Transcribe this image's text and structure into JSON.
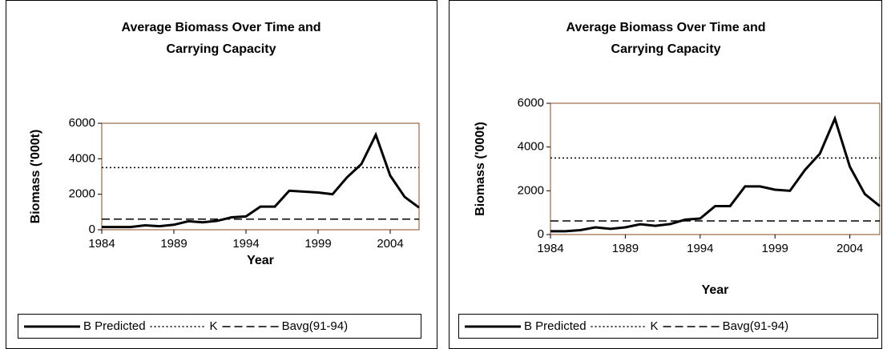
{
  "chart_data": [
    {
      "type": "line",
      "title": "Average Biomass Over Time and",
      "subtitle": "Carrying Capacity",
      "x_label": "Year",
      "y_label": "Biomass ('000t)",
      "x": [
        1984,
        1985,
        1986,
        1987,
        1988,
        1989,
        1990,
        1991,
        1992,
        1993,
        1994,
        1995,
        1996,
        1997,
        1998,
        1999,
        2000,
        2001,
        2002,
        2003,
        2004,
        2005,
        2006
      ],
      "xlim": [
        1984,
        2006
      ],
      "xticks": [
        1984,
        1989,
        1994,
        1999,
        2004
      ],
      "ylim": [
        0,
        6000
      ],
      "yticks": [
        0,
        2000,
        4000,
        6000
      ],
      "legend": "bottom",
      "series": [
        {
          "name": "B Predicted",
          "color": "#000000",
          "dash": "solid",
          "values": [
            150,
            150,
            150,
            250,
            200,
            280,
            480,
            420,
            500,
            700,
            750,
            1300,
            1300,
            2200,
            2150,
            2100,
            2000,
            2950,
            3700,
            5350,
            3050,
            1850,
            1250
          ]
        },
        {
          "name": "K",
          "color": "#000000",
          "dash": "dotted",
          "values": [
            3500,
            3500,
            3500,
            3500,
            3500,
            3500,
            3500,
            3500,
            3500,
            3500,
            3500,
            3500,
            3500,
            3500,
            3500,
            3500,
            3500,
            3500,
            3500,
            3500,
            3500,
            3500,
            3500
          ]
        },
        {
          "name": "Bavg(91-94)",
          "color": "#000000",
          "dash": "dashed",
          "values": [
            600,
            600,
            600,
            600,
            600,
            600,
            600,
            600,
            600,
            600,
            600,
            600,
            600,
            600,
            600,
            600,
            600,
            600,
            600,
            600,
            600,
            600,
            600
          ]
        }
      ]
    },
    {
      "type": "line",
      "title": "Average Biomass Over Time and",
      "subtitle": "Carrying Capacity",
      "x_label": "Year",
      "y_label": "Biomass ('000t)",
      "x": [
        1984,
        1985,
        1986,
        1987,
        1988,
        1989,
        1990,
        1991,
        1992,
        1993,
        1994,
        1995,
        1996,
        1997,
        1998,
        1999,
        2000,
        2001,
        2002,
        2003,
        2004,
        2005,
        2006
      ],
      "xlim": [
        1984,
        2006
      ],
      "xticks": [
        1984,
        1989,
        1994,
        1999,
        2004
      ],
      "ylim": [
        0,
        6000
      ],
      "yticks": [
        0,
        2000,
        4000,
        6000
      ],
      "legend": "bottom",
      "series": [
        {
          "name": "B Predicted",
          "color": "#000000",
          "dash": "solid",
          "values": [
            150,
            150,
            200,
            330,
            260,
            330,
            470,
            400,
            480,
            680,
            730,
            1300,
            1300,
            2200,
            2200,
            2050,
            2000,
            2950,
            3700,
            5300,
            3100,
            1850,
            1300
          ]
        },
        {
          "name": "K",
          "color": "#000000",
          "dash": "dotted",
          "values": [
            3500,
            3500,
            3500,
            3500,
            3500,
            3500,
            3500,
            3500,
            3500,
            3500,
            3500,
            3500,
            3500,
            3500,
            3500,
            3500,
            3500,
            3500,
            3500,
            3500,
            3500,
            3500,
            3500
          ]
        },
        {
          "name": "Bavg(91-94)",
          "color": "#000000",
          "dash": "dashed",
          "values": [
            620,
            620,
            620,
            620,
            620,
            620,
            620,
            620,
            620,
            620,
            620,
            620,
            620,
            620,
            620,
            620,
            620,
            620,
            620,
            620,
            620,
            620,
            620
          ]
        }
      ]
    }
  ]
}
